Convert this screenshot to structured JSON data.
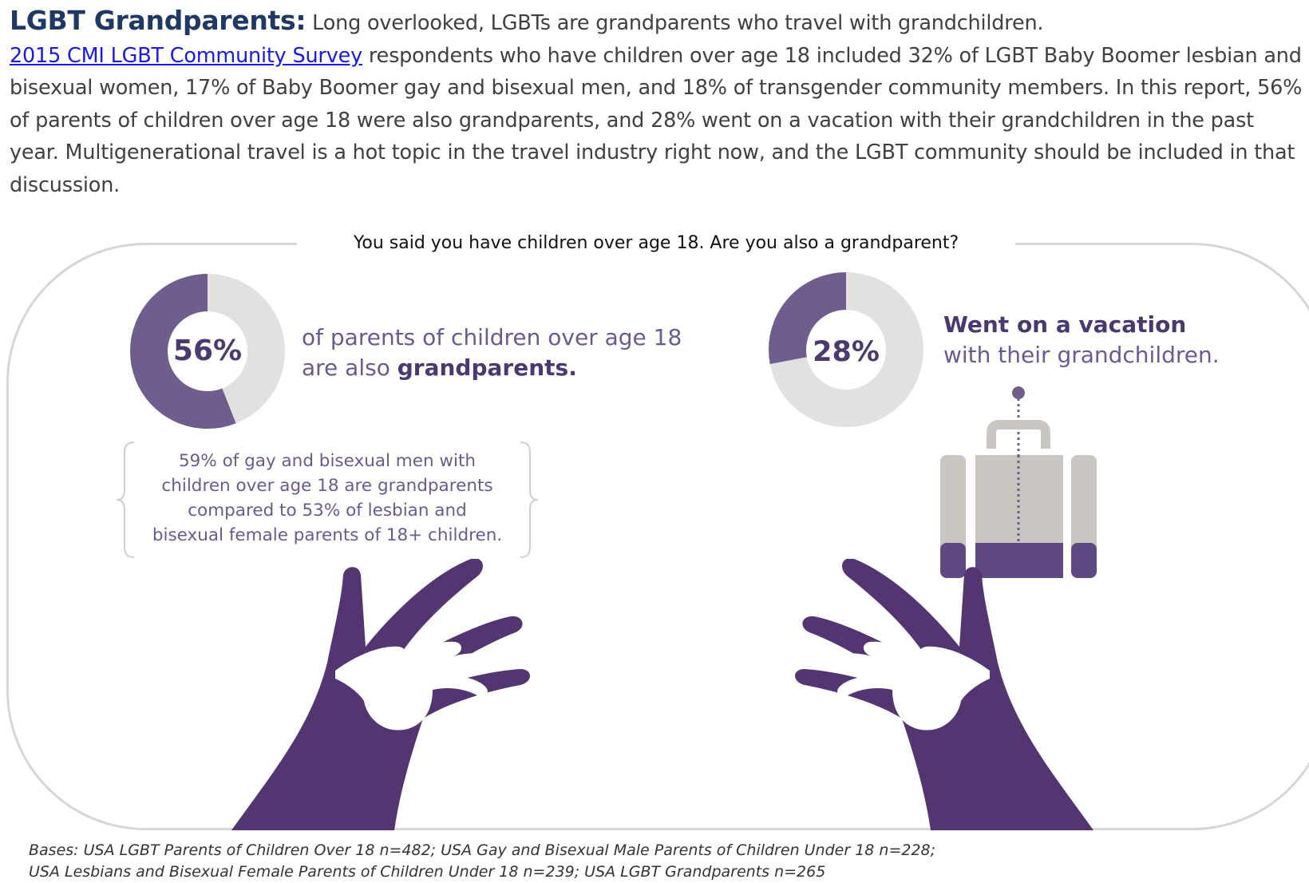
{
  "intro": {
    "heading": "LGBT Grandparents:",
    "lead": " Long overlooked, LGBTs are grandparents who travel with grandchildren.",
    "survey_link": "2015 CMI LGBT Community Survey",
    "body": " respondents who have children over age 18 included 32% of LGBT Baby Boomer lesbian and bisexual women, 17% of Baby Boomer gay and bisexual men, and 18% of transgender community members. In this report, 56% of parents of children over age 18 were also grandparents, and 28% went on a vacation with their grandchildren in the past year. Multigenerational travel is a hot topic in the travel industry right now, and the LGBT community should be included in that discussion."
  },
  "infographic": {
    "question": "You said you have children over age 18. Are you also a grandparent?",
    "stat_grandparents": {
      "value": 56,
      "label": "56%",
      "text_line1": "of parents of children over age 18",
      "text_line2_prefix": "are also ",
      "text_line2_bold": "grandparents."
    },
    "stat_vacation": {
      "value": 28,
      "label": "28%",
      "text_line1_bold": "Went on a vacation",
      "text_line2": "with their grandchildren."
    },
    "callout": {
      "line1": "59% of gay and bisexual men with",
      "line2": "children over age 18 are grandparents",
      "line3": "compared to 53% of lesbian and",
      "line4": "bisexual female parents of 18+ children."
    },
    "icons": {
      "left_hands": "hands-icon",
      "right_hands": "hands-icon",
      "luggage": "suitcase-icon"
    }
  },
  "footnote": {
    "line1": "Bases: USA LGBT Parents of Children Over 18 n=482; USA Gay and Bisexual Male Parents of Children Under 18 n=228;",
    "line2": "USA Lesbians and Bisexual Female Parents of Children Under 18 n=239; USA LGBT Grandparents n=265"
  },
  "colors": {
    "heading": "#1f3864",
    "link": "#1a1ae6",
    "purple_dark": "#523571",
    "purple_mid": "#6f5d8e",
    "donut_track": "#e1e1e1",
    "suitcase_gray": "#c9c5c1"
  }
}
